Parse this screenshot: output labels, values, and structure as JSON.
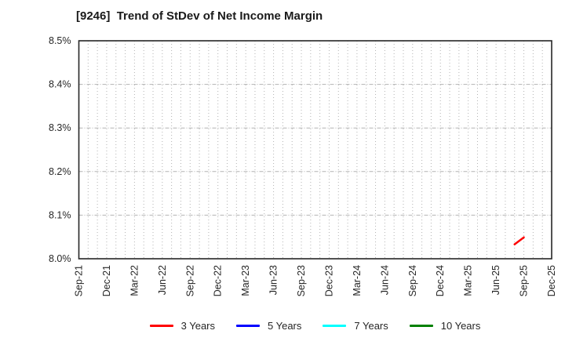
{
  "title": "[9246]  Trend of StDev of Net Income Margin",
  "colors": {
    "background": "#ffffff",
    "plot_border": "#262626",
    "grid": "#b3b3b3",
    "text": "#262626",
    "series_red": "#ff0000",
    "series_blue": "#0000ff",
    "series_cyan": "#00ffff",
    "series_green": "#008000"
  },
  "chart_data": {
    "type": "line",
    "title": "[9246]  Trend of StDev of Net Income Margin",
    "xlabel": "",
    "ylabel": "",
    "grid": {
      "vertical": "dotted, one per month",
      "horizontal": "dashed, one per 0.1%"
    },
    "y_axis": {
      "min": 8.0,
      "max": 8.5,
      "tick_step": 0.1,
      "unit": "%",
      "tick_labels": [
        "8.0%",
        "8.1%",
        "8.2%",
        "8.3%",
        "8.4%",
        "8.5%"
      ]
    },
    "x_axis": {
      "tick_labels": [
        "Sep-21",
        "Dec-21",
        "Mar-22",
        "Jun-22",
        "Sep-22",
        "Dec-22",
        "Mar-23",
        "Jun-23",
        "Sep-23",
        "Dec-23",
        "Mar-24",
        "Jun-24",
        "Sep-24",
        "Dec-24",
        "Mar-25",
        "Jun-25",
        "Sep-25",
        "Dec-25"
      ],
      "months_per_tick": 3,
      "total_month_intervals": 51,
      "label_rotation_deg": 90
    },
    "series": [
      {
        "name": "3 Years",
        "color": "#ff0000",
        "points": [
          {
            "month": "Aug-25",
            "month_index": 47,
            "value": 8.033
          },
          {
            "month": "Sep-25",
            "month_index": 48,
            "value": 8.049
          }
        ]
      },
      {
        "name": "5 Years",
        "color": "#0000ff",
        "points": []
      },
      {
        "name": "7 Years",
        "color": "#00ffff",
        "points": []
      },
      {
        "name": "10 Years",
        "color": "#008000",
        "points": []
      }
    ],
    "legend": {
      "position": "bottom",
      "entries": [
        "3 Years",
        "5 Years",
        "7 Years",
        "10 Years"
      ]
    }
  }
}
